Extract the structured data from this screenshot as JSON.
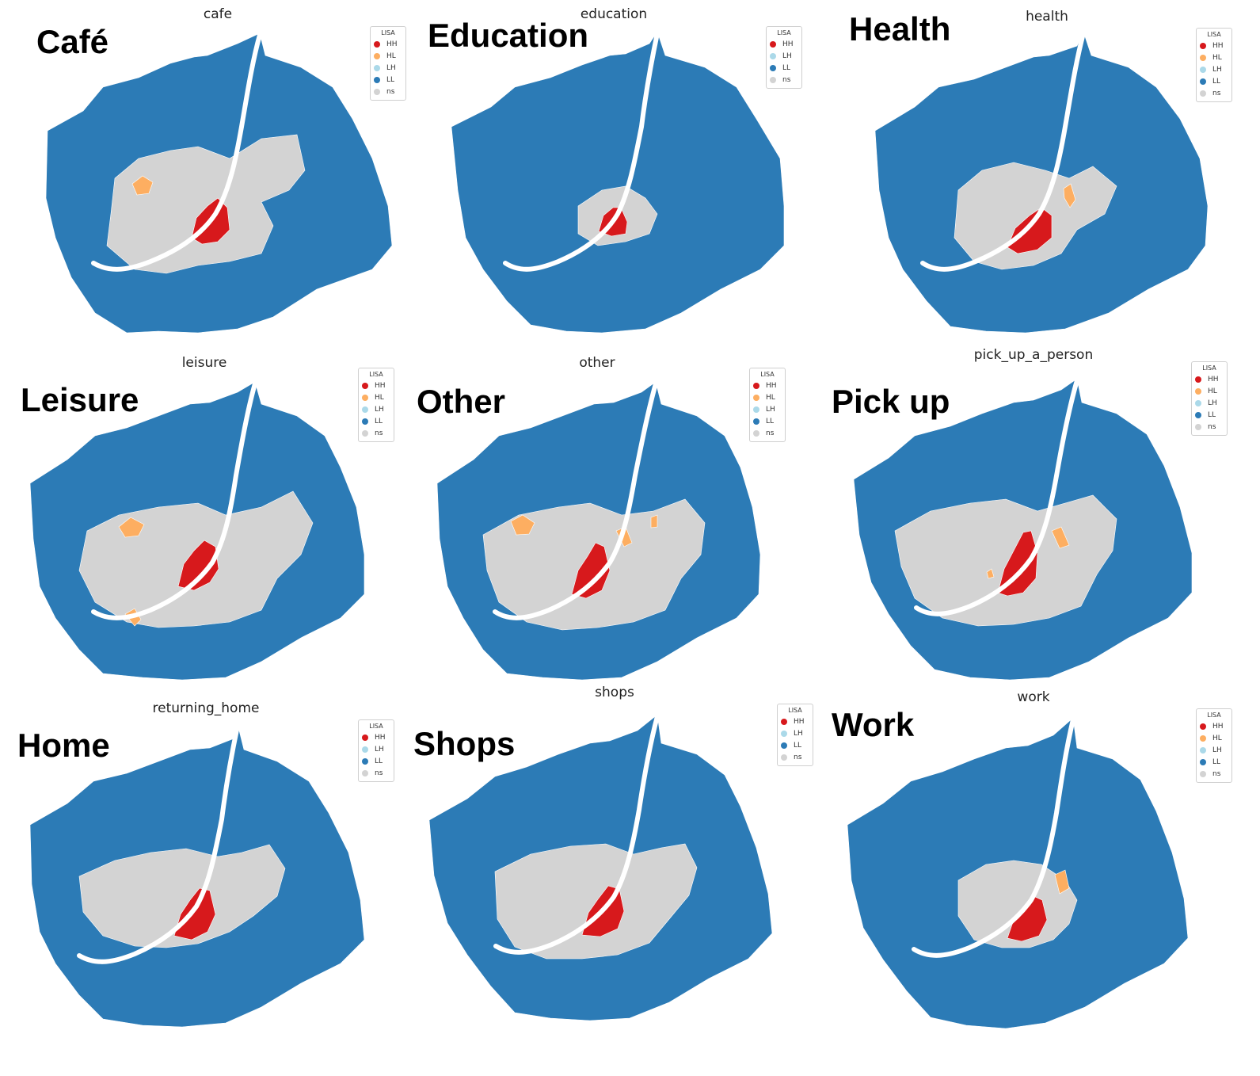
{
  "legend": {
    "title": "LISA",
    "colors": {
      "HH": "#d7191c",
      "HL": "#fdae61",
      "LH": "#abd9e9",
      "LL": "#2c7bb6",
      "ns": "#d3d3d3"
    }
  },
  "panels": [
    {
      "title": "cafe",
      "label": "Café",
      "legend_items": [
        "HH",
        "HL",
        "LH",
        "LL",
        "ns"
      ]
    },
    {
      "title": "education",
      "label": "Education",
      "legend_items": [
        "HH",
        "LH",
        "LL",
        "ns"
      ]
    },
    {
      "title": "health",
      "label": "Health",
      "legend_items": [
        "HH",
        "HL",
        "LH",
        "LL",
        "ns"
      ]
    },
    {
      "title": "leisure",
      "label": "Leisure",
      "legend_items": [
        "HH",
        "HL",
        "LH",
        "LL",
        "ns"
      ]
    },
    {
      "title": "other",
      "label": "Other",
      "legend_items": [
        "HH",
        "HL",
        "LH",
        "LL",
        "ns"
      ]
    },
    {
      "title": "pick_up_a_person",
      "label": "Pick up",
      "legend_items": [
        "HH",
        "HL",
        "LH",
        "LL",
        "ns"
      ]
    },
    {
      "title": "returning_home",
      "label": "Home",
      "legend_items": [
        "HH",
        "LH",
        "LL",
        "ns"
      ]
    },
    {
      "title": "shops",
      "label": "Shops",
      "legend_items": [
        "HH",
        "LH",
        "LL",
        "ns"
      ]
    },
    {
      "title": "work",
      "label": "Work",
      "legend_items": [
        "HH",
        "HL",
        "LH",
        "LL",
        "ns"
      ]
    }
  ]
}
